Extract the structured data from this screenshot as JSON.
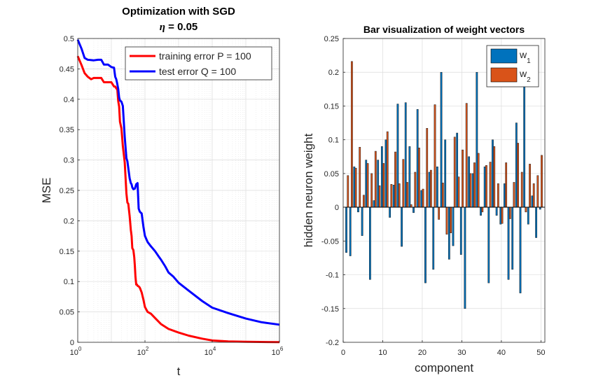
{
  "chart_data": [
    {
      "type": "line",
      "title": "Optimization with SGD",
      "subtitle_symbol": "η",
      "subtitle_value": " = 0.05",
      "xlabel": "t",
      "ylabel": "MSE",
      "xscale": "log",
      "xlim": [
        1,
        1000000
      ],
      "ylim": [
        0,
        0.5
      ],
      "grid": true,
      "legend_position": "top-right",
      "yticks": [
        "0",
        "0.05",
        "0.1",
        "0.15",
        "0.2",
        "0.25",
        "0.3",
        "0.35",
        "0.4",
        "0.45",
        "0.5"
      ],
      "xticks": [
        {
          "base": "10",
          "exp": "0"
        },
        {
          "base": "10",
          "exp": "2"
        },
        {
          "base": "10",
          "exp": "4"
        },
        {
          "base": "10",
          "exp": "6"
        }
      ],
      "series": [
        {
          "name": "training error P = 100",
          "color": "#ff0000",
          "x": [
            1,
            1.3,
            1.6,
            2,
            2.5,
            3,
            5,
            6,
            8,
            10,
            12,
            13,
            14,
            15,
            16,
            17,
            18,
            20,
            22,
            25,
            28,
            30,
            32,
            35,
            38,
            40,
            42,
            45,
            48,
            50,
            52,
            55,
            58,
            60,
            65,
            70,
            80,
            90,
            100,
            120,
            150,
            200,
            300,
            500,
            1000,
            2000,
            5000,
            10000,
            30000,
            100000,
            1000000
          ],
          "y": [
            0.471,
            0.456,
            0.443,
            0.437,
            0.433,
            0.435,
            0.435,
            0.428,
            0.428,
            0.428,
            0.421,
            0.421,
            0.418,
            0.416,
            0.397,
            0.388,
            0.363,
            0.352,
            0.323,
            0.296,
            0.245,
            0.23,
            0.228,
            0.208,
            0.185,
            0.175,
            0.155,
            0.152,
            0.14,
            0.125,
            0.108,
            0.095,
            0.095,
            0.093,
            0.092,
            0.09,
            0.082,
            0.07,
            0.058,
            0.05,
            0.047,
            0.04,
            0.03,
            0.022,
            0.016,
            0.011,
            0.006,
            0.003,
            0.0015,
            0.0008,
            0.0002
          ]
        },
        {
          "name": "test error Q = 100",
          "color": "#0000ff",
          "x": [
            1,
            1.3,
            1.6,
            2,
            3,
            4,
            5,
            6,
            8,
            10,
            12,
            13,
            14,
            15,
            16,
            17,
            18,
            20,
            22,
            25,
            28,
            30,
            35,
            38,
            40,
            42,
            45,
            50,
            55,
            60,
            65,
            70,
            80,
            90,
            100,
            120,
            150,
            200,
            250,
            300,
            400,
            500,
            700,
            1000,
            2000,
            5000,
            10000,
            30000,
            100000,
            300000,
            1000000
          ],
          "y": [
            0.498,
            0.483,
            0.468,
            0.465,
            0.464,
            0.465,
            0.465,
            0.457,
            0.457,
            0.453,
            0.452,
            0.437,
            0.433,
            0.425,
            0.417,
            0.403,
            0.398,
            0.396,
            0.389,
            0.338,
            0.303,
            0.298,
            0.27,
            0.262,
            0.26,
            0.255,
            0.252,
            0.253,
            0.26,
            0.262,
            0.22,
            0.215,
            0.212,
            0.19,
            0.175,
            0.165,
            0.158,
            0.15,
            0.142,
            0.136,
            0.125,
            0.115,
            0.108,
            0.098,
            0.085,
            0.068,
            0.057,
            0.048,
            0.039,
            0.033,
            0.029
          ]
        }
      ]
    },
    {
      "type": "bar",
      "title": "Bar visualization of weight vectors",
      "xlabel": "component",
      "ylabel": "hidden neuron weight",
      "xlim": [
        0,
        51
      ],
      "ylim": [
        -0.2,
        0.25
      ],
      "grid": true,
      "legend_position": "top-right",
      "yticks": [
        "-0.2",
        "-0.15",
        "-0.1",
        "-0.05",
        "0",
        "0.05",
        "0.1",
        "0.15",
        "0.2",
        "0.25"
      ],
      "xticks": [
        "0",
        "10",
        "20",
        "30",
        "40",
        "50"
      ],
      "categories": [
        1,
        2,
        3,
        4,
        5,
        6,
        7,
        8,
        9,
        10,
        11,
        12,
        13,
        14,
        15,
        16,
        17,
        18,
        19,
        20,
        21,
        22,
        23,
        24,
        25,
        26,
        27,
        28,
        29,
        30,
        31,
        32,
        33,
        34,
        35,
        36,
        37,
        38,
        39,
        40,
        41,
        42,
        43,
        44,
        45,
        46,
        47,
        48,
        49,
        50
      ],
      "series": [
        {
          "name": "w",
          "subscript": "1",
          "color": "#0072bd",
          "values": [
            -0.067,
            -0.072,
            0.06,
            -0.007,
            -0.042,
            0.07,
            -0.107,
            0.01,
            0.07,
            0.09,
            0.1,
            -0.015,
            0.033,
            0.153,
            -0.058,
            0.155,
            0.09,
            -0.008,
            0.145,
            0.025,
            -0.112,
            0.052,
            -0.092,
            0.06,
            0.2,
            0.1,
            -0.077,
            -0.057,
            0.11,
            -0.07,
            -0.15,
            0.075,
            0.05,
            0.2,
            -0.012,
            0.06,
            -0.112,
            0.1,
            -0.012,
            -0.025,
            0.035,
            -0.107,
            -0.092,
            0.125,
            -0.127,
            0.187,
            -0.025,
            0.017,
            -0.045,
            -0.003
          ]
        },
        {
          "name": "w",
          "subscript": "2",
          "color": "#d95319",
          "values": [
            0.047,
            0.216,
            0.058,
            0.089,
            0.018,
            0.065,
            0.05,
            0.083,
            0.032,
            0.065,
            0.112,
            0.034,
            0.082,
            0.035,
            0.071,
            0.037,
            0.004,
            0.052,
            0.088,
            0.027,
            0.117,
            0.055,
            0.152,
            -0.018,
            0.036,
            -0.04,
            -0.038,
            0.104,
            0.045,
            0.085,
            0.154,
            0.05,
            0.066,
            0.08,
            -0.007,
            0.062,
            0.067,
            0.09,
            0.035,
            -0.024,
            0.066,
            -0.017,
            0.037,
            0.095,
            0.052,
            -0.007,
            0.064,
            0.035,
            0.047,
            0.077
          ]
        }
      ]
    }
  ]
}
